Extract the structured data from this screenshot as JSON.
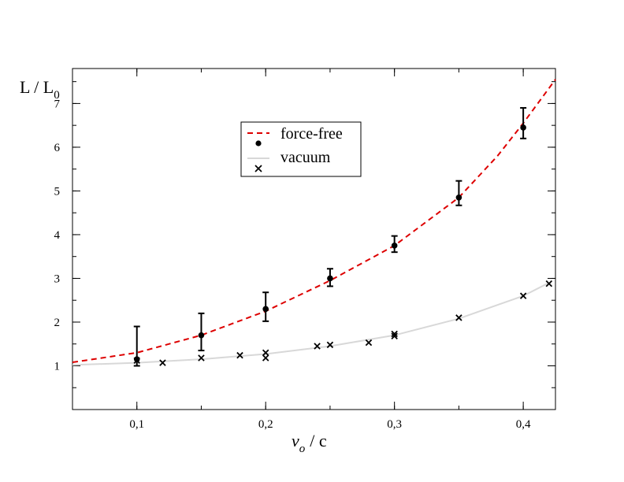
{
  "chart_data": {
    "type": "scatter",
    "x_range": [
      0.05,
      0.425
    ],
    "y_range": [
      0,
      7.8
    ],
    "x_ticks": [
      {
        "value": 0.1,
        "label": "0,1"
      },
      {
        "value": 0.2,
        "label": "0,2"
      },
      {
        "value": 0.3,
        "label": "0,3"
      },
      {
        "value": 0.4,
        "label": "0,4"
      }
    ],
    "y_ticks": [
      {
        "value": 1,
        "label": "1"
      },
      {
        "value": 2,
        "label": "2"
      },
      {
        "value": 3,
        "label": "3"
      },
      {
        "value": 4,
        "label": "4"
      },
      {
        "value": 5,
        "label": "5"
      },
      {
        "value": 6,
        "label": "6"
      },
      {
        "value": 7,
        "label": "7"
      }
    ],
    "x_minor_step": 0.05,
    "y_minor_step": 0.5,
    "xlabel": {
      "main": "v",
      "sub": "o",
      "rest": "/ c"
    },
    "ylabel": {
      "main": "L / L",
      "sub": "0"
    },
    "legend_position": "top-center",
    "colors": {
      "force_free_curve": "#dd0000",
      "vacuum_curve": "#d8d8d8",
      "markers": "#000000"
    },
    "series": [
      {
        "name": "force-free",
        "kind": "line",
        "style": "dashed",
        "x": [
          0.05,
          0.1,
          0.15,
          0.2,
          0.25,
          0.3,
          0.35,
          0.38,
          0.4,
          0.425
        ],
        "y": [
          1.08,
          1.3,
          1.7,
          2.25,
          2.95,
          3.75,
          4.85,
          5.8,
          6.55,
          7.55
        ]
      },
      {
        "name": "force-free",
        "kind": "points",
        "marker": "circle",
        "x": [
          0.1,
          0.15,
          0.2,
          0.25,
          0.3,
          0.35,
          0.4
        ],
        "y": [
          1.15,
          1.7,
          2.3,
          3.0,
          3.75,
          4.85,
          6.45
        ],
        "err_low": [
          0.15,
          0.35,
          0.28,
          0.18,
          0.15,
          0.18,
          0.25
        ],
        "err_high": [
          0.75,
          0.5,
          0.38,
          0.22,
          0.22,
          0.38,
          0.45
        ]
      },
      {
        "name": "vacuum",
        "kind": "line",
        "style": "solid",
        "x": [
          0.05,
          0.1,
          0.15,
          0.2,
          0.25,
          0.3,
          0.35,
          0.4,
          0.42
        ],
        "y": [
          1.02,
          1.07,
          1.15,
          1.27,
          1.45,
          1.7,
          2.08,
          2.6,
          2.9
        ]
      },
      {
        "name": "vacuum",
        "kind": "points",
        "marker": "x",
        "x": [
          0.1,
          0.12,
          0.15,
          0.18,
          0.2,
          0.2,
          0.24,
          0.25,
          0.28,
          0.3,
          0.3,
          0.35,
          0.4,
          0.42
        ],
        "y": [
          1.12,
          1.07,
          1.18,
          1.24,
          1.3,
          1.18,
          1.45,
          1.48,
          1.53,
          1.73,
          1.68,
          2.1,
          2.6,
          2.88
        ]
      }
    ],
    "legend": [
      {
        "label": "force-free"
      },
      {
        "label": "vacuum"
      }
    ]
  }
}
